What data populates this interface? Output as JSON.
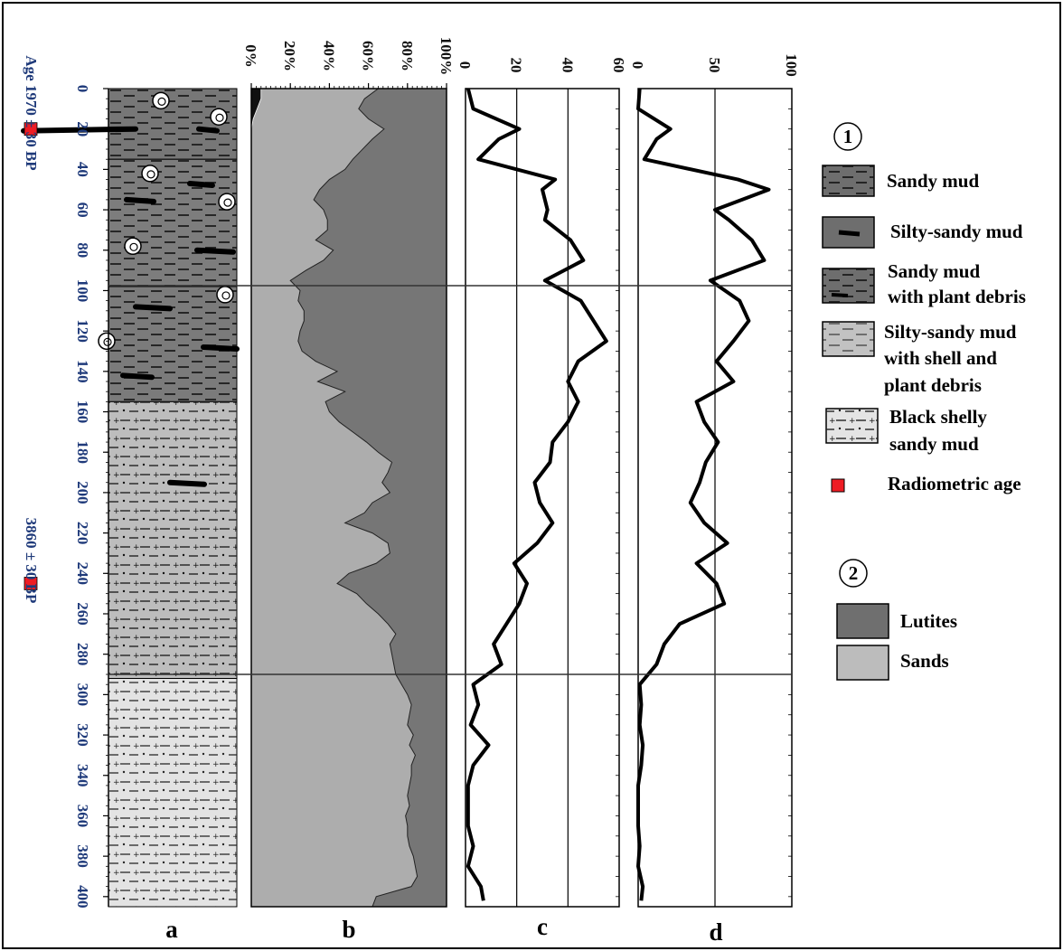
{
  "chart_data": [
    {
      "type": "table",
      "panel": "a",
      "depth_ticks": [
        0,
        20,
        40,
        60,
        80,
        100,
        120,
        140,
        160,
        180,
        200,
        220,
        240,
        260,
        280,
        300,
        320,
        340,
        360,
        380,
        400
      ],
      "ylim": [
        0,
        405
      ],
      "units": [
        {
          "from": 0,
          "to": 35,
          "fill": "#777777",
          "pattern": "sandy-mud"
        },
        {
          "from": 35,
          "to": 98,
          "fill": "#7d7d7d",
          "pattern": "sandy-mud"
        },
        {
          "from": 98,
          "to": 155,
          "fill": "#7b7b7b",
          "pattern": "sandy-mud"
        },
        {
          "from": 155,
          "to": 292,
          "fill": "#bdbdbd",
          "pattern": "silty-sandy-shell"
        },
        {
          "from": 292,
          "to": 405,
          "fill": "#e3e3e3",
          "pattern": "black-shelly"
        }
      ],
      "ages": [
        {
          "text": "Age 1970 ± 30 BP",
          "depth": 20,
          "marker_color": "#ee1c24"
        },
        {
          "text": "3860 ± 30 BP",
          "depth": 245,
          "marker_color": "#ee1c24"
        }
      ],
      "label": "a"
    },
    {
      "type": "area",
      "panel": "b",
      "xticks": [
        "0%",
        "20%",
        "40%",
        "60%",
        "80%",
        "100%"
      ],
      "xlim": [
        0,
        100
      ],
      "depth": [
        0,
        5,
        10,
        15,
        20,
        25,
        30,
        35,
        40,
        45,
        50,
        55,
        60,
        65,
        70,
        75,
        80,
        85,
        90,
        95,
        100,
        105,
        110,
        115,
        120,
        125,
        130,
        135,
        140,
        145,
        150,
        155,
        160,
        165,
        170,
        175,
        180,
        185,
        190,
        195,
        200,
        205,
        210,
        215,
        220,
        225,
        230,
        235,
        240,
        245,
        250,
        255,
        260,
        265,
        270,
        275,
        280,
        285,
        290,
        295,
        300,
        305,
        310,
        315,
        320,
        325,
        330,
        335,
        340,
        345,
        350,
        355,
        360,
        365,
        370,
        375,
        380,
        385,
        390,
        395,
        400,
        405
      ],
      "sands_percent": [
        65,
        58,
        55,
        60,
        68,
        62,
        57,
        52,
        48,
        40,
        35,
        32,
        37,
        39,
        39,
        33,
        42,
        37,
        28,
        20,
        25,
        24,
        27,
        27,
        25,
        24,
        26,
        33,
        44,
        34,
        48,
        38,
        40,
        45,
        52,
        59,
        65,
        72,
        70,
        67,
        71,
        62,
        58,
        48,
        62,
        70,
        71,
        64,
        50,
        44,
        54,
        59,
        65,
        70,
        74,
        71,
        72,
        73,
        74,
        77,
        80,
        82,
        81,
        80,
        83,
        81,
        84,
        82,
        82,
        81,
        80,
        81,
        79,
        80,
        80,
        81,
        83,
        84,
        85,
        82,
        64,
        62
      ],
      "fine_percent_top": [
        5,
        5,
        3,
        1,
        0,
        0,
        0,
        0,
        0,
        0,
        0,
        0,
        0,
        0,
        0,
        0,
        0,
        0,
        0,
        0,
        0,
        0,
        0,
        0,
        0,
        0,
        0,
        0,
        0,
        0,
        0,
        0,
        0,
        0,
        0,
        0,
        0,
        0,
        0,
        0,
        0,
        0,
        0,
        0,
        0,
        0,
        0,
        0,
        0,
        0,
        0,
        0,
        0,
        0,
        0,
        0,
        0,
        0,
        0,
        0,
        0,
        0,
        0,
        0,
        0,
        0,
        0,
        0,
        0,
        0,
        0,
        0,
        0,
        0,
        0,
        0,
        0,
        0,
        0,
        0,
        0,
        0
      ],
      "series_colors": {
        "sands": "#adadad",
        "lutites": "#767676"
      },
      "label": "b"
    },
    {
      "type": "line",
      "panel": "c",
      "xticks": [
        "0",
        "20",
        "40",
        "60"
      ],
      "xlim": [
        0,
        60
      ],
      "grid_x": [
        20,
        40
      ],
      "depth": [
        0,
        10,
        20,
        25,
        35,
        45,
        50,
        60,
        65,
        75,
        85,
        95,
        105,
        115,
        125,
        135,
        145,
        155,
        165,
        175,
        185,
        195,
        205,
        215,
        225,
        235,
        245,
        255,
        265,
        275,
        285,
        295,
        305,
        315,
        325,
        335,
        345,
        355,
        365,
        375,
        385,
        395,
        402
      ],
      "values": [
        1,
        3,
        21,
        13,
        5,
        35,
        30,
        32,
        31,
        41,
        46,
        31,
        45,
        50,
        55,
        44,
        40,
        44,
        40,
        34,
        33,
        27,
        29,
        34,
        28,
        19,
        24,
        21,
        16,
        11,
        14,
        3,
        5,
        2,
        9,
        3,
        1,
        1,
        1,
        3,
        1,
        6,
        7
      ],
      "label": "c"
    },
    {
      "type": "line",
      "panel": "d",
      "xticks": [
        "0",
        "50",
        "100"
      ],
      "xlim": [
        0,
        100
      ],
      "grid_x": [
        50
      ],
      "depth": [
        0,
        10,
        20,
        25,
        35,
        45,
        50,
        60,
        65,
        75,
        85,
        95,
        105,
        115,
        125,
        135,
        145,
        155,
        165,
        175,
        185,
        195,
        205,
        215,
        225,
        235,
        245,
        255,
        265,
        275,
        285,
        295,
        305,
        315,
        325,
        335,
        345,
        355,
        365,
        375,
        385,
        395,
        402
      ],
      "values": [
        1,
        0,
        21,
        12,
        4,
        65,
        85,
        50,
        59,
        74,
        82,
        47,
        66,
        72,
        62,
        51,
        62,
        38,
        43,
        52,
        44,
        40,
        34,
        43,
        58,
        38,
        51,
        56,
        27,
        17,
        12,
        1,
        2,
        1,
        3,
        2,
        0,
        0,
        0,
        1,
        0,
        3,
        2
      ],
      "label": "d"
    }
  ],
  "legend_1": {
    "marker": "1",
    "items": [
      {
        "label": "Sandy mud",
        "swatch": "sandy-mud"
      },
      {
        "label": "Silty-sandy mud",
        "swatch": "silty-sandy-mud"
      },
      {
        "label": "Sandy mud with plant debris",
        "swatch": "sandy-mud-plant"
      },
      {
        "label": "Silty-sandy mud with shell and plant debris",
        "swatch": "silty-shell-plant"
      },
      {
        "label": "Black shelly sandy mud",
        "swatch": "black-shelly"
      },
      {
        "label": "Radiometric age",
        "swatch": "red-square"
      }
    ]
  },
  "legend_2": {
    "marker": "2",
    "items": [
      {
        "label": "Lutites",
        "color": "#6f6f6f"
      },
      {
        "label": "Sands",
        "color": "#bcbcbc"
      }
    ]
  }
}
